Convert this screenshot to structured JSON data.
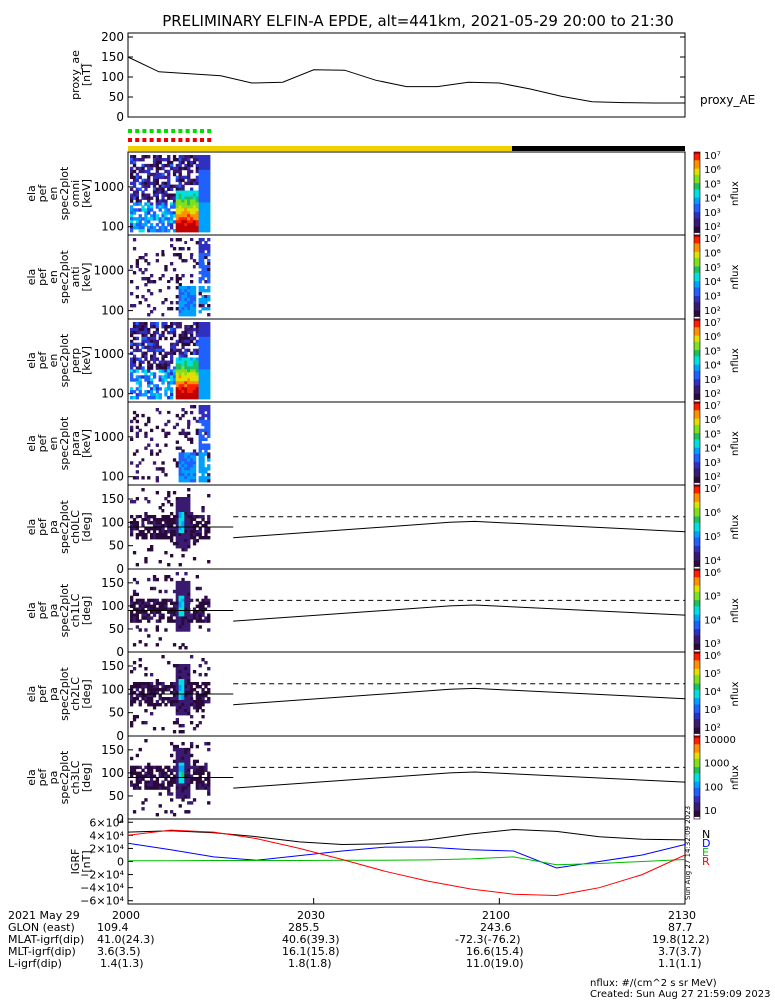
{
  "title": "PRELIMINARY ELFIN-A EPDE, alt=441km, 2021-05-29 20:00 to 21:30",
  "chart_data": [
    {
      "type": "line",
      "ylabel": [
        "proxy_ae",
        "[nT]"
      ],
      "series_label": "proxy_AE",
      "yticks": [
        "200",
        "150",
        "100",
        "50",
        "0"
      ],
      "ylim": [
        0,
        210
      ],
      "x_min": [
        0,
        5,
        10,
        15,
        20,
        25,
        30,
        35,
        40,
        45,
        50,
        55,
        60,
        65,
        70,
        75,
        80,
        85,
        90
      ],
      "values": [
        150,
        113,
        108,
        103,
        85,
        87,
        118,
        117,
        92,
        76,
        76,
        87,
        85,
        70,
        52,
        38,
        36,
        35,
        35
      ]
    },
    {
      "type": "heatmap",
      "ylabel": [
        "ela",
        "pef",
        "en",
        "spec2plot",
        "omni",
        "[keV]"
      ],
      "yticks": [
        "1000",
        "100"
      ],
      "colorbar": {
        "label": "nflux",
        "ticks": [
          "10⁷",
          "10⁶",
          "10⁵",
          "10⁴",
          "10³",
          "10²"
        ]
      }
    },
    {
      "type": "heatmap",
      "ylabel": [
        "ela",
        "pef",
        "en",
        "spec2plot",
        "anti",
        "[keV]"
      ],
      "yticks": [
        "1000",
        "100"
      ],
      "colorbar": {
        "label": "nflux",
        "ticks": [
          "10⁷",
          "10⁶",
          "10⁵",
          "10⁴",
          "10³",
          "10²"
        ]
      }
    },
    {
      "type": "heatmap",
      "ylabel": [
        "ela",
        "pef",
        "en",
        "spec2plot",
        "perp",
        "[keV]"
      ],
      "yticks": [
        "1000",
        "100"
      ],
      "colorbar": {
        "label": "nflux",
        "ticks": [
          "10⁷",
          "10⁶",
          "10⁵",
          "10⁴",
          "10³",
          "10²"
        ]
      }
    },
    {
      "type": "heatmap",
      "ylabel": [
        "ela",
        "pef",
        "en",
        "spec2plot",
        "para",
        "[keV]"
      ],
      "yticks": [
        "1000",
        "100"
      ],
      "colorbar": {
        "label": "nflux",
        "ticks": [
          "10⁷",
          "10⁶",
          "10⁵",
          "10⁴",
          "10³",
          "10²"
        ]
      }
    },
    {
      "type": "heatmap",
      "ylabel": [
        "ela",
        "pef",
        "pa",
        "spec2plot",
        "ch0LC",
        "[deg]"
      ],
      "yticks": [
        "150",
        "100",
        "50",
        "0"
      ],
      "ylim": [
        0,
        180
      ],
      "colorbar": {
        "label": "nflux",
        "ticks": [
          "10⁷",
          "10⁶",
          "10⁵",
          "10⁴"
        ]
      }
    },
    {
      "type": "heatmap",
      "ylabel": [
        "ela",
        "pef",
        "pa",
        "spec2plot",
        "ch1LC",
        "[deg]"
      ],
      "yticks": [
        "150",
        "100",
        "50",
        "0"
      ],
      "ylim": [
        0,
        180
      ],
      "colorbar": {
        "label": "nflux",
        "ticks": [
          "10⁶",
          "10⁵",
          "10⁴",
          "10³"
        ]
      }
    },
    {
      "type": "heatmap",
      "ylabel": [
        "ela",
        "pef",
        "pa",
        "spec2plot",
        "ch2LC",
        "[deg]"
      ],
      "yticks": [
        "150",
        "100",
        "50",
        "0"
      ],
      "ylim": [
        0,
        180
      ],
      "colorbar": {
        "label": "nflux",
        "ticks": [
          "10⁶",
          "10⁵",
          "10⁴",
          "10³",
          "10²"
        ]
      }
    },
    {
      "type": "heatmap",
      "ylabel": [
        "ela",
        "pef",
        "pa",
        "spec2plot",
        "ch3LC",
        "[deg]"
      ],
      "yticks": [
        "150",
        "100",
        "50",
        "0"
      ],
      "ylim": [
        0,
        180
      ],
      "colorbar": {
        "label": "nflux",
        "ticks": [
          "10000",
          "1000",
          "100",
          "10"
        ]
      }
    },
    {
      "type": "line",
      "ylabel": [
        "IGRF",
        "[nT]"
      ],
      "yticks": [
        "6×10⁴",
        "4×10⁴",
        "2×10⁴",
        "0",
        "−2×10⁴",
        "−4×10⁴",
        "−6×10⁴"
      ],
      "ylim": [
        -65000,
        65000
      ],
      "series": [
        {
          "name": "N",
          "color": "#000000",
          "values": [
            45000,
            47000,
            44000,
            38000,
            30000,
            26000,
            27000,
            33000,
            42000,
            49000,
            46000,
            38000,
            34000,
            33000
          ]
        },
        {
          "name": "D",
          "color": "#0000ff",
          "values": [
            28000,
            18000,
            7000,
            2000,
            9000,
            16000,
            22000,
            22000,
            18000,
            16000,
            -10000,
            0,
            10000,
            26000
          ]
        },
        {
          "name": "E",
          "color": "#00bb00",
          "values": [
            1000,
            1000,
            1500,
            1500,
            1500,
            2000,
            2000,
            2500,
            4000,
            7000,
            -5000,
            -3000,
            0,
            3000
          ]
        },
        {
          "name": "R",
          "color": "#ff0000",
          "values": [
            40000,
            48000,
            45000,
            35000,
            20000,
            3000,
            -15000,
            -30000,
            -42000,
            -50000,
            -52000,
            -40000,
            -20000,
            10000
          ]
        }
      ]
    }
  ],
  "status_stamp": "Sun Aug 27 14:32:09 2023",
  "footer": {
    "time_axis": {
      "label": "2021 May 29",
      "ticks": [
        "2000",
        "2030",
        "2100",
        "2130"
      ]
    },
    "rows": [
      {
        "label": "GLON (east)",
        "values": [
          "109.4",
          "285.5",
          "243.6",
          "87.7"
        ]
      },
      {
        "label": "MLAT-igrf(dip)",
        "values": [
          "41.0(24.3)",
          "40.6(39.3)",
          "-72.3(-76.2)",
          "19.8(12.2)"
        ]
      },
      {
        "label": "MLT-igrf(dip)",
        "values": [
          "3.6(3.5)",
          "16.1(15.8)",
          "16.6(15.4)",
          "3.7(3.7)"
        ]
      },
      {
        "label": "L-igrf(dip)",
        "values": [
          "1.4(1.3)",
          "1.8(1.8)",
          "11.0(19.0)",
          "1.1(1.1)"
        ]
      }
    ],
    "units": "nflux: #/(cm^2 s sr MeV)",
    "created": "Created: Sun Aug 27 21:59:09 2023"
  }
}
